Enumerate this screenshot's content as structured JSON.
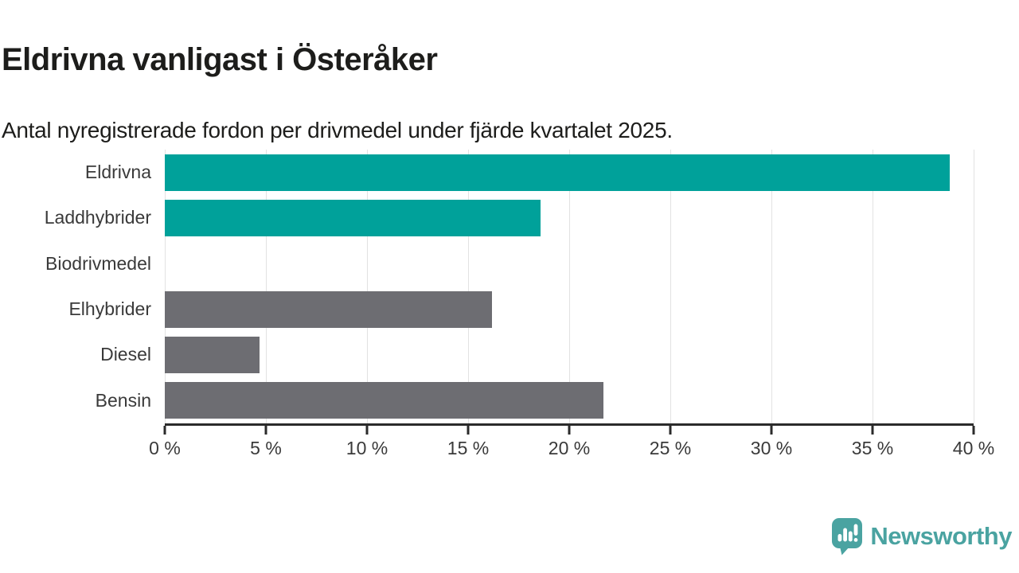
{
  "title": "Eldrivna vanligast i Österåker",
  "subtitle": "Antal nyregistrerade fordon per drivmedel under fjärde kvartalet 2025.",
  "chart_data": {
    "type": "bar",
    "orientation": "horizontal",
    "title": "Eldrivna vanligast i Österåker",
    "subtitle": "Antal nyregistrerade fordon per drivmedel under fjärde kvartalet 2025.",
    "categories": [
      "Eldrivna",
      "Laddhybrider",
      "Biodrivmedel",
      "Elhybrider",
      "Diesel",
      "Bensin"
    ],
    "values": [
      38.8,
      18.6,
      0,
      16.2,
      4.7,
      21.7
    ],
    "unit": "%",
    "bar_colors": [
      "#00a19a",
      "#00a19a",
      "#6d6d72",
      "#6d6d72",
      "#6d6d72",
      "#6d6d72"
    ],
    "xlim": [
      0,
      40
    ],
    "x_tick_labels": [
      "0 %",
      "5 %",
      "10 %",
      "15 %",
      "20 %",
      "25 %",
      "30 %",
      "35 %",
      "40 %"
    ],
    "grid": "vertical-on",
    "legend": "none"
  },
  "colors": {
    "bar_teal": "#00a19a",
    "bar_gray": "#6d6d72",
    "axis": "#2b2b2b",
    "gridline": "#e2e2e2",
    "heading_text": "#1d1d1b",
    "label_text": "#3a3a3a",
    "logo": "#4aa3a1"
  },
  "branding": {
    "logo_text": "Newsworthy",
    "logo_icon": "speech-bubble-bar-chart-exclamation"
  }
}
